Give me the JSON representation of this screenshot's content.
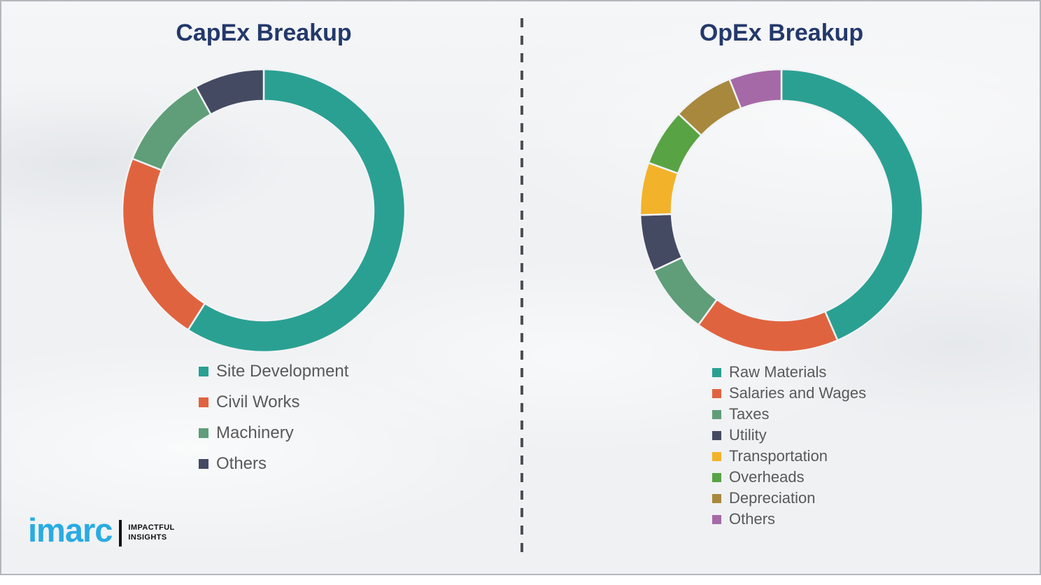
{
  "page": {
    "background_color": "#eff1f3",
    "frame_border_color": "#b3b7bb"
  },
  "divider": {
    "orientation": "vertical",
    "style": "dashed",
    "color": "#4d4f52"
  },
  "logo": {
    "brand": "imarc",
    "brand_color": "#29abe2",
    "separator_color": "#121212",
    "tagline_line1": "IMPACTFUL",
    "tagline_line2": "INSIGHTS",
    "tagline_color": "#121212"
  },
  "chart_data": [
    {
      "type": "pie",
      "variant": "donut",
      "title": "CapEx Breakup",
      "title_color": "#24396b",
      "legend_position": "below",
      "legend_text_color": "#595959",
      "unit": "percent-estimated",
      "start_angle_deg": 0,
      "direction": "clockwise",
      "segments": [
        {
          "label": "Site Development",
          "value": 59,
          "color": "#2aa093"
        },
        {
          "label": "Civil Works",
          "value": 22,
          "color": "#e0633f"
        },
        {
          "label": "Machinery",
          "value": 11,
          "color": "#5f9e78"
        },
        {
          "label": "Others",
          "value": 8,
          "color": "#454a63"
        }
      ]
    },
    {
      "type": "pie",
      "variant": "donut",
      "title": "OpEx Breakup",
      "title_color": "#24396b",
      "legend_position": "below",
      "legend_text_color": "#595959",
      "unit": "percent-estimated",
      "start_angle_deg": 0,
      "direction": "clockwise",
      "segments": [
        {
          "label": "Raw Materials",
          "value": 43.5,
          "color": "#2aa093"
        },
        {
          "label": "Salaries and Wages",
          "value": 16.5,
          "color": "#e0633f"
        },
        {
          "label": "Taxes",
          "value": 8,
          "color": "#5f9e78"
        },
        {
          "label": "Utility",
          "value": 6.5,
          "color": "#454a63"
        },
        {
          "label": "Transportation",
          "value": 6,
          "color": "#f2b32a"
        },
        {
          "label": "Overheads",
          "value": 6.5,
          "color": "#58a344"
        },
        {
          "label": "Depreciation",
          "value": 7,
          "color": "#a8883c"
        },
        {
          "label": "Others",
          "value": 6,
          "color": "#a569a8"
        }
      ]
    }
  ]
}
